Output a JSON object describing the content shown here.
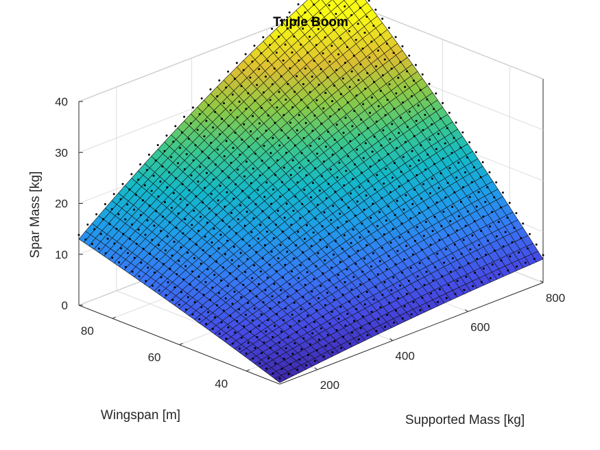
{
  "chart_data": {
    "type": "surface",
    "title": "Triple Boom",
    "xlabel": "Supported Mass [kg]",
    "ylabel": "Wingspan [m]",
    "zlabel": "Spar Mass [kg]",
    "xlim": [
      100,
      800
    ],
    "ylim": [
      30,
      90
    ],
    "zlim": [
      0,
      40
    ],
    "xticks": [
      "200",
      "400",
      "600",
      "800"
    ],
    "yticks": [
      "40",
      "60",
      "80"
    ],
    "zticks": [
      "0",
      "10",
      "20",
      "30",
      "40"
    ],
    "grid": true,
    "colormap": "parula",
    "surface": {
      "description": "Spar mass as a function of supported mass and wingspan",
      "corner_values": [
        {
          "x": 100,
          "y": 30,
          "z": 0.3
        },
        {
          "x": 800,
          "y": 30,
          "z": 4.6
        },
        {
          "x": 100,
          "y": 90,
          "z": 13.0
        },
        {
          "x": 800,
          "y": 90,
          "z": 46.0
        }
      ]
    },
    "overlay_markers": "black dots on surface grid (model points)"
  }
}
